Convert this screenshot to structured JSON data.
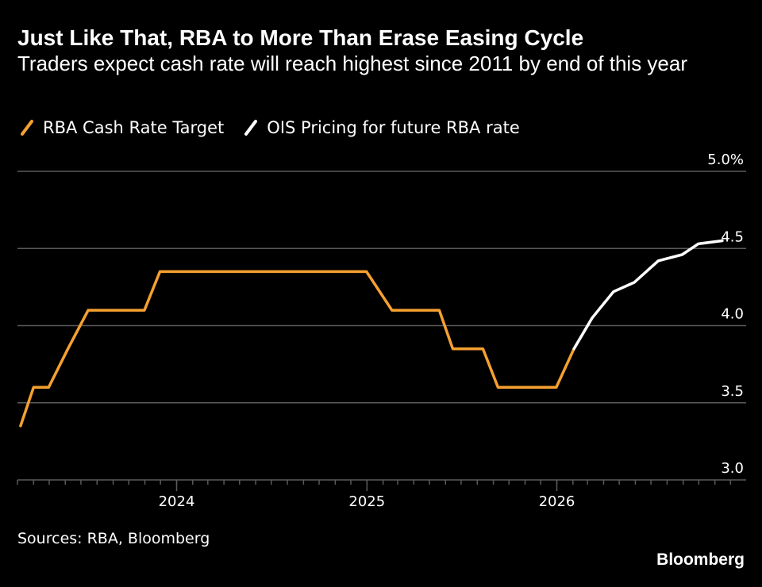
{
  "header": {
    "title": "Just Like That, RBA to More Than Erase Easing Cycle",
    "subtitle": "Traders expect cash rate will reach highest since 2011 by end of this year"
  },
  "footer": {
    "source": "Sources: RBA, Bloomberg",
    "brand": "Bloomberg"
  },
  "colors": {
    "background": "#000000",
    "rba_series": "#f5a030",
    "ois_series": "#ffffff",
    "grid": "#5a5a5a",
    "text": "#ffffff"
  },
  "chart_data": {
    "type": "line",
    "title": "Just Like That, RBA to More Than Erase Easing Cycle",
    "subtitle": "Traders expect cash rate will reach highest since 2011 by end of this year",
    "xlabel": "",
    "ylabel": "",
    "x_range": [
      "2023-03-01",
      "2026-12-31"
    ],
    "ylim": [
      3.0,
      5.0
    ],
    "y_ticks": [
      {
        "value": 3.0,
        "label": "3.0"
      },
      {
        "value": 3.5,
        "label": "3.5"
      },
      {
        "value": 4.0,
        "label": "4.0"
      },
      {
        "value": 4.5,
        "label": "4.5"
      },
      {
        "value": 5.0,
        "label": "5.0%"
      }
    ],
    "x_ticks": [
      {
        "date": "2024-01-01",
        "label": "2024"
      },
      {
        "date": "2025-01-01",
        "label": "2025"
      },
      {
        "date": "2026-01-01",
        "label": "2026"
      }
    ],
    "minor_tick_unit": "month",
    "grid": true,
    "y_axis_side": "right",
    "legend_position": "top-left",
    "series": [
      {
        "name": "RBA Cash Rate Target",
        "color": "#f5a030",
        "points": [
          {
            "x": "2023-03-07",
            "y": 3.35
          },
          {
            "x": "2023-04-01",
            "y": 3.6
          },
          {
            "x": "2023-04-30",
            "y": 3.6
          },
          {
            "x": "2023-06-06",
            "y": 3.85
          },
          {
            "x": "2023-07-15",
            "y": 4.1
          },
          {
            "x": "2023-10-31",
            "y": 4.1
          },
          {
            "x": "2023-11-30",
            "y": 4.35
          },
          {
            "x": "2024-12-31",
            "y": 4.35
          },
          {
            "x": "2025-02-18",
            "y": 4.1
          },
          {
            "x": "2025-05-20",
            "y": 4.1
          },
          {
            "x": "2025-06-15",
            "y": 3.85
          },
          {
            "x": "2025-08-12",
            "y": 3.85
          },
          {
            "x": "2025-09-10",
            "y": 3.6
          },
          {
            "x": "2025-12-31",
            "y": 3.6
          },
          {
            "x": "2026-02-03",
            "y": 3.85
          }
        ]
      },
      {
        "name": "OIS Pricing for future RBA rate",
        "color": "#ffffff",
        "points": [
          {
            "x": "2026-02-03",
            "y": 3.85
          },
          {
            "x": "2026-03-10",
            "y": 4.05
          },
          {
            "x": "2026-04-20",
            "y": 4.22
          },
          {
            "x": "2026-05-30",
            "y": 4.28
          },
          {
            "x": "2026-07-15",
            "y": 4.42
          },
          {
            "x": "2026-08-30",
            "y": 4.46
          },
          {
            "x": "2026-09-30",
            "y": 4.53
          },
          {
            "x": "2026-11-15",
            "y": 4.55
          }
        ]
      }
    ]
  }
}
